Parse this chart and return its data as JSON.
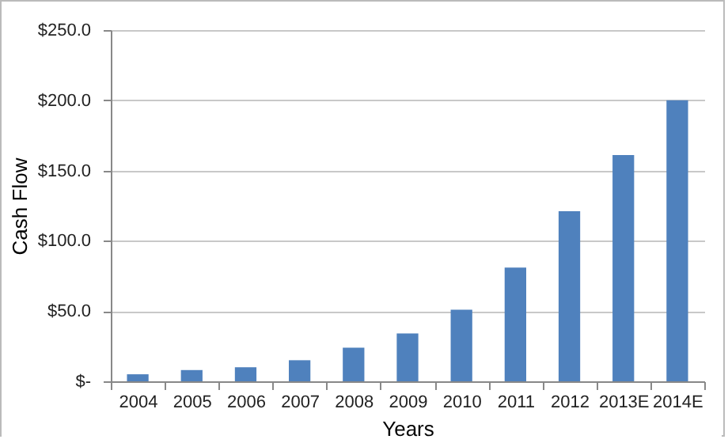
{
  "chart_data": {
    "type": "bar",
    "xlabel": "Years",
    "ylabel": "Cash Flow",
    "categories": [
      "2004",
      "2005",
      "2006",
      "2007",
      "2008",
      "2009",
      "2010",
      "2011",
      "2012",
      "2013E",
      "2014E"
    ],
    "values": [
      5,
      8,
      10,
      15,
      24,
      34,
      51,
      81,
      121,
      161,
      200
    ],
    "color": "#4f81bd",
    "ylim": [
      0,
      250
    ],
    "yticks": [
      {
        "value": 0,
        "label": "$-"
      },
      {
        "value": 50,
        "label": "$50.0"
      },
      {
        "value": 100,
        "label": "$100.0"
      },
      {
        "value": 150,
        "label": "$150.0"
      },
      {
        "value": 200,
        "label": "$200.0"
      },
      {
        "value": 250,
        "label": "$250.0"
      }
    ],
    "grid": "y"
  }
}
